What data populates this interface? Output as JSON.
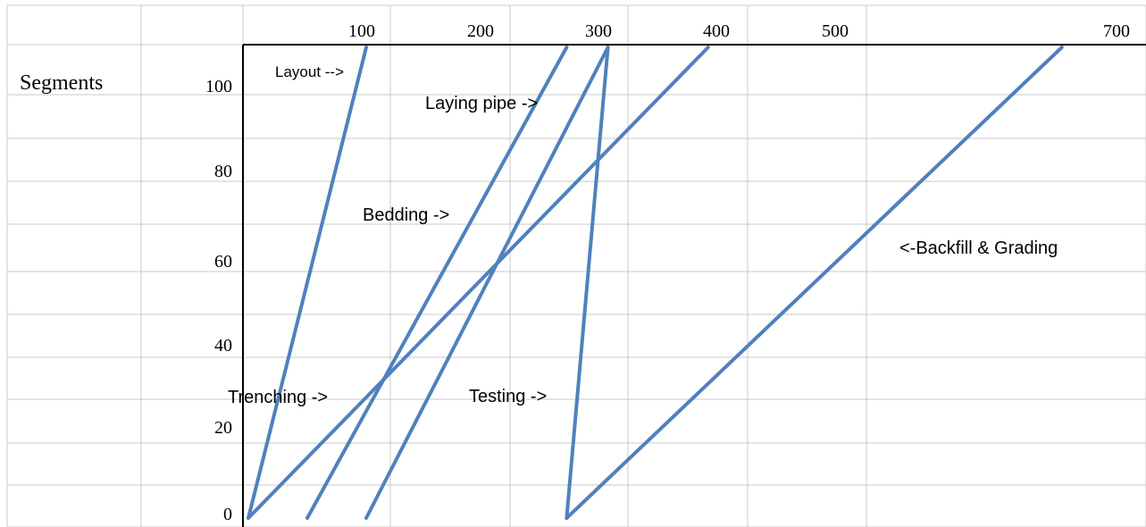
{
  "chart_data": {
    "type": "line",
    "title": "",
    "ylabel": "Segments",
    "xlabel": "",
    "x_ticks": [
      "100",
      "200",
      "300",
      "400",
      "500",
      "700"
    ],
    "y_ticks": [
      "100",
      "80",
      "60",
      "40",
      "20",
      "0"
    ],
    "xlim": [
      0,
      750
    ],
    "ylim": [
      0,
      110
    ],
    "grid": true,
    "line_color": "#4F81BD",
    "series": [
      {
        "name": "Layout -->",
        "x": [
          0,
          100
        ],
        "y": [
          0,
          108
        ]
      },
      {
        "name": "Trenching ->",
        "x": [
          0,
          390
        ],
        "y": [
          0,
          108
        ]
      },
      {
        "name": "Bedding ->",
        "x": [
          50,
          270
        ],
        "y": [
          0,
          108
        ]
      },
      {
        "name": "Laying pipe ->",
        "x": [
          100,
          305
        ],
        "y": [
          0,
          108
        ]
      },
      {
        "name": "Testing ->",
        "x": [
          270,
          305
        ],
        "y": [
          0,
          108
        ]
      },
      {
        "name": "<-Backfill & Grading",
        "x": [
          270,
          690
        ],
        "y": [
          0,
          108
        ]
      }
    ]
  }
}
